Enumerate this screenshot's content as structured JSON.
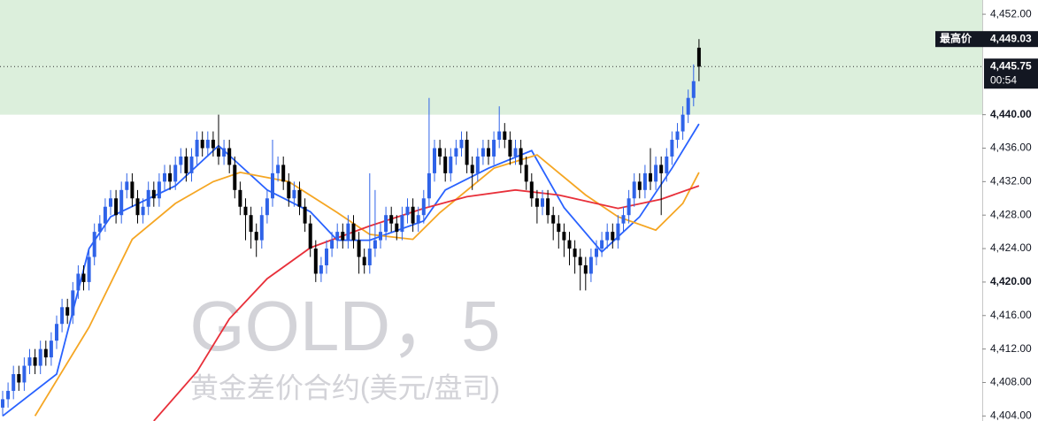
{
  "chart_data": {
    "type": "candlestick",
    "title": "GOLD，5",
    "subtitle": "黄金差价合约(美元/盘司)",
    "up_color": "#2f63e8",
    "down_color": "#000000",
    "grid": false,
    "ylim": [
      4403.4,
      4453.7
    ],
    "yticks": [
      {
        "value": 4452,
        "label": "4,452.00"
      },
      {
        "value": 4440,
        "label": "4,440.00",
        "bold": true
      },
      {
        "value": 4436,
        "label": "4,436.00"
      },
      {
        "value": 4432,
        "label": "4,432.00"
      },
      {
        "value": 4428,
        "label": "4,428.00"
      },
      {
        "value": 4424,
        "label": "4,424.00"
      },
      {
        "value": 4420,
        "label": "4,420.00",
        "bold": true
      },
      {
        "value": 4416,
        "label": "4,416.00"
      },
      {
        "value": 4412,
        "label": "4,412.00"
      },
      {
        "value": 4408,
        "label": "4,408.00"
      },
      {
        "value": 4404,
        "label": "4,404.00"
      }
    ],
    "zone": {
      "from": 4440,
      "color": "#dcefdc"
    },
    "high_marker": {
      "text": "最高价",
      "value": 4449.03,
      "label": "4,449.03"
    },
    "last_price": {
      "value": 4445.75,
      "label": "4,445.75",
      "countdown": "00:54"
    },
    "open": [
      4405,
      4406,
      4407,
      4409,
      4408,
      4410,
      4411,
      4410,
      4412,
      4411,
      4413,
      4415,
      4417,
      4416,
      4419,
      4421,
      4420,
      4423,
      4426,
      4427,
      4429,
      4430,
      4428,
      4431,
      4432,
      4430,
      4428,
      4429,
      4431,
      4430,
      4432,
      4433,
      4432,
      4434,
      4435,
      4433,
      4435,
      4437,
      4436,
      4437,
      4436,
      4435,
      4436,
      4434,
      4431,
      4429,
      4428,
      4426,
      4425,
      4428,
      4430,
      4433,
      4434,
      4432,
      4430,
      4431,
      4429,
      4427,
      4424,
      4421,
      4422,
      4424,
      4425,
      4426,
      4425,
      4427,
      4425,
      4423,
      4422,
      4424,
      4425,
      4426,
      4428,
      4427,
      4426,
      4428,
      4429,
      4427,
      4428,
      4430,
      4433,
      4436,
      4435,
      4433,
      4435,
      4436,
      4437,
      4434,
      4433,
      4435,
      4436,
      4435,
      4437,
      4438,
      4437,
      4435,
      4436,
      4434,
      4432,
      4430,
      4429,
      4430,
      4428,
      4427,
      4426,
      4425,
      4424,
      4423,
      4422,
      4421,
      4423,
      4424,
      4425,
      4426,
      4425,
      4427,
      4428,
      4430,
      4432,
      4431,
      4433,
      4432,
      4434,
      4433,
      4435,
      4437,
      4438,
      4440,
      4442,
      4448
    ],
    "high": [
      4407,
      4408,
      4410,
      4410,
      4411,
      4412,
      4412,
      4413,
      4413,
      4414,
      4416,
      4418,
      4418,
      4420,
      4422,
      4422,
      4424,
      4427,
      4428,
      4430,
      4431,
      4431,
      4432,
      4433,
      4433,
      4431,
      4430,
      4432,
      4432,
      4433,
      4434,
      4434,
      4435,
      4436,
      4436,
      4436,
      4438,
      4438,
      4438,
      4438,
      4440,
      4437,
      4437,
      4435,
      4432,
      4430,
      4429,
      4427,
      4429,
      4431,
      4437,
      4435,
      4435,
      4433,
      4432,
      4432,
      4430,
      4428,
      4425,
      4423,
      4425,
      4426,
      4427,
      4427,
      4428,
      4428,
      4426,
      4424,
      4433,
      4431,
      4427,
      4429,
      4429,
      4428,
      4429,
      4430,
      4430,
      4429,
      4431,
      4442,
      4437,
      4437,
      4436,
      4436,
      4437,
      4438,
      4438,
      4435,
      4436,
      4437,
      4437,
      4438,
      4441,
      4439,
      4438,
      4437,
      4437,
      4435,
      4433,
      4431,
      4431,
      4431,
      4429,
      4428,
      4427,
      4426,
      4425,
      4424,
      4423,
      4424,
      4425,
      4426,
      4427,
      4427,
      4428,
      4429,
      4431,
      4433,
      4433,
      4434,
      4436,
      4435,
      4435,
      4436,
      4438,
      4439,
      4441,
      4443,
      4446,
      4449.03
    ],
    "low": [
      4404,
      4405,
      4406,
      4407,
      4407,
      4409,
      4409,
      4409,
      4410,
      4410,
      4412,
      4414,
      4415,
      4415,
      4418,
      4419,
      4419,
      4422,
      4425,
      4426,
      4428,
      4427,
      4427,
      4430,
      4429,
      4427,
      4427,
      4428,
      4429,
      4429,
      4431,
      4431,
      4431,
      4433,
      4432,
      4432,
      4434,
      4435,
      4435,
      4435,
      4434,
      4434,
      4433,
      4430,
      4428,
      4425,
      4424,
      4423,
      4424,
      4427,
      4429,
      4432,
      4431,
      4429,
      4429,
      4428,
      4426,
      4423,
      4420,
      4420,
      4421,
      4423,
      4424,
      4424,
      4424,
      4424,
      4421,
      4421,
      4421,
      4423,
      4424,
      4425,
      4426,
      4425,
      4425,
      4427,
      4426,
      4426,
      4427,
      4429,
      4432,
      4434,
      4432,
      4432,
      4434,
      4435,
      4433,
      4431,
      4432,
      4434,
      4434,
      4434,
      4436,
      4436,
      4434,
      4434,
      4433,
      4431,
      4429,
      4427,
      4428,
      4427,
      4425,
      4424,
      4423,
      4422,
      4421,
      4419,
      4419,
      4420,
      4422,
      4423,
      4424,
      4424,
      4424,
      4426,
      4427,
      4429,
      4430,
      4430,
      4431,
      4431,
      4428,
      4432,
      4434,
      4436,
      4437,
      4439,
      4441,
      4444
    ],
    "close": [
      4406,
      4407,
      4409,
      4408,
      4410,
      4411,
      4410,
      4412,
      4411,
      4413,
      4415,
      4417,
      4416,
      4419,
      4421,
      4420,
      4423,
      4426,
      4427,
      4429,
      4430,
      4428,
      4431,
      4432,
      4430,
      4428,
      4429,
      4431,
      4430,
      4432,
      4433,
      4432,
      4434,
      4435,
      4433,
      4435,
      4437,
      4436,
      4437,
      4436,
      4435,
      4436,
      4434,
      4431,
      4429,
      4428,
      4426,
      4425,
      4428,
      4430,
      4433,
      4434,
      4432,
      4430,
      4431,
      4429,
      4427,
      4424,
      4421,
      4422,
      4424,
      4425,
      4426,
      4425,
      4427,
      4425,
      4423,
      4422,
      4424,
      4425,
      4426,
      4428,
      4427,
      4426,
      4428,
      4429,
      4427,
      4428,
      4430,
      4433,
      4436,
      4435,
      4433,
      4435,
      4436,
      4437,
      4434,
      4433,
      4435,
      4436,
      4435,
      4437,
      4438,
      4437,
      4435,
      4436,
      4434,
      4432,
      4430,
      4429,
      4430,
      4428,
      4427,
      4426,
      4425,
      4424,
      4423,
      4422,
      4421,
      4423,
      4424,
      4425,
      4426,
      4425,
      4427,
      4428,
      4430,
      4432,
      4431,
      4433,
      4432,
      4434,
      4433,
      4435,
      4437,
      4438,
      4440,
      4442,
      4444,
      4445.75
    ],
    "series": [
      {
        "color": "#2962ff",
        "x": [
          0,
          10,
          16,
          20,
          32,
          40,
          49,
          57,
          62,
          68,
          78,
          82,
          90,
          98,
          104,
          111,
          118,
          124,
          129
        ],
        "values": [
          4404,
          4409,
          4424,
          4427.8,
          4431.5,
          4436.3,
          4431,
          4428.4,
          4425,
          4425,
          4427.3,
          4431,
          4433.6,
          4435.7,
          4428.9,
          4423.6,
          4427.8,
          4433.6,
          4438.9
        ]
      },
      {
        "color": "#f5a623",
        "x": [
          6,
          16,
          24,
          32,
          39,
          44,
          53,
          62,
          68,
          76,
          81,
          91,
          99,
          108,
          114,
          121,
          126,
          129
        ],
        "values": [
          4404,
          4414.6,
          4425.1,
          4429.4,
          4432,
          4433.1,
          4432,
          4428.3,
          4425.7,
          4425.1,
          4428.3,
          4433.6,
          4435.2,
          4430.4,
          4427.8,
          4426.2,
          4429.4,
          4433.1
        ]
      },
      {
        "color": "#e8303a",
        "x": [
          28,
          36,
          42,
          49,
          57,
          68,
          78,
          86,
          95,
          103,
          114,
          122,
          129
        ],
        "values": [
          4403.4,
          4409.3,
          4415.6,
          4420.4,
          4424.1,
          4426.7,
          4428.8,
          4430.2,
          4431,
          4430.4,
          4428.8,
          4429.9,
          4431.5
        ]
      }
    ]
  }
}
